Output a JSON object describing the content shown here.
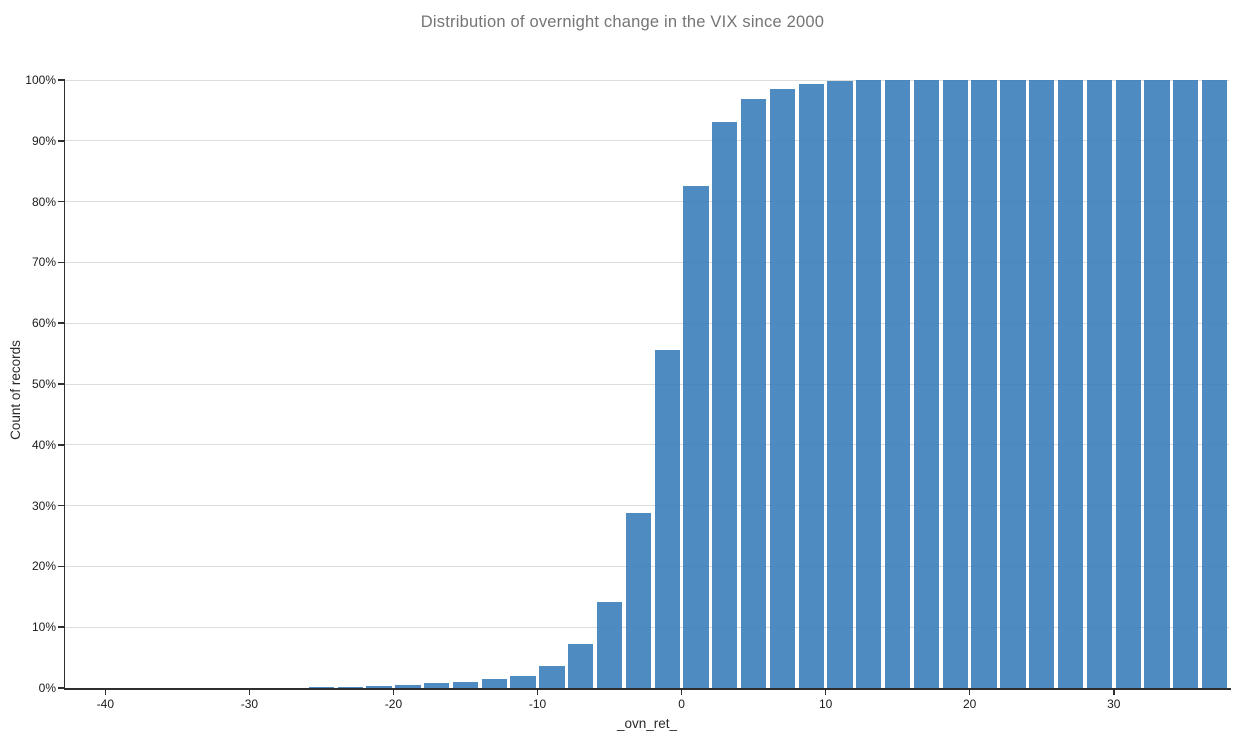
{
  "chart_data": {
    "type": "bar",
    "subtype": "cumulative-histogram",
    "title": "Distribution of overnight change in the VIX since 2000",
    "xlabel": "_ovn_ret_",
    "ylabel": "Count of records",
    "xlim": [
      -42.8,
      38
    ],
    "ylim_percent": [
      0,
      100
    ],
    "bin_width": 2,
    "grid": "horizontal-only",
    "legend": "none",
    "x_ticks": [
      -40,
      -30,
      -20,
      -10,
      0,
      10,
      20,
      30
    ],
    "x_tick_labels": [
      "-40",
      "-30",
      "-20",
      "-10",
      "0",
      "10",
      "20",
      "30"
    ],
    "y_ticks_percent": [
      0,
      10,
      20,
      30,
      40,
      50,
      60,
      70,
      80,
      90,
      100
    ],
    "y_tick_labels": [
      "0%",
      "10%",
      "20%",
      "30%",
      "40%",
      "50%",
      "60%",
      "70%",
      "80%",
      "90%",
      "100%"
    ],
    "bars": [
      {
        "x0": -42,
        "pct": 0.02
      },
      {
        "x0": -40,
        "pct": 0.03
      },
      {
        "x0": -38,
        "pct": 0.03
      },
      {
        "x0": -36,
        "pct": 0.04
      },
      {
        "x0": -34,
        "pct": 0.05
      },
      {
        "x0": -32,
        "pct": 0.06
      },
      {
        "x0": -30,
        "pct": 0.07
      },
      {
        "x0": -28,
        "pct": 0.08
      },
      {
        "x0": -26,
        "pct": 0.1
      },
      {
        "x0": -24,
        "pct": 0.15
      },
      {
        "x0": -22,
        "pct": 0.3
      },
      {
        "x0": -20,
        "pct": 0.5
      },
      {
        "x0": -18,
        "pct": 0.8
      },
      {
        "x0": -16,
        "pct": 1.05
      },
      {
        "x0": -14,
        "pct": 1.45
      },
      {
        "x0": -12,
        "pct": 2.0
      },
      {
        "x0": -10,
        "pct": 3.7
      },
      {
        "x0": -8,
        "pct": 7.2
      },
      {
        "x0": -6,
        "pct": 14.2
      },
      {
        "x0": -4,
        "pct": 28.8
      },
      {
        "x0": -2,
        "pct": 55.6
      },
      {
        "x0": 0,
        "pct": 82.6
      },
      {
        "x0": 2,
        "pct": 93.1
      },
      {
        "x0": 4,
        "pct": 96.9
      },
      {
        "x0": 6,
        "pct": 98.6
      },
      {
        "x0": 8,
        "pct": 99.3
      },
      {
        "x0": 10,
        "pct": 99.8
      },
      {
        "x0": 12,
        "pct": 100
      },
      {
        "x0": 14,
        "pct": 100
      },
      {
        "x0": 16,
        "pct": 100
      },
      {
        "x0": 18,
        "pct": 100
      },
      {
        "x0": 20,
        "pct": 100
      },
      {
        "x0": 22,
        "pct": 100
      },
      {
        "x0": 24,
        "pct": 100
      },
      {
        "x0": 26,
        "pct": 100
      },
      {
        "x0": 28,
        "pct": 100
      },
      {
        "x0": 30,
        "pct": 100
      },
      {
        "x0": 32,
        "pct": 100
      },
      {
        "x0": 34,
        "pct": 100
      },
      {
        "x0": 36,
        "pct": 100
      }
    ],
    "colors": {
      "bar_fill": "#327ab7",
      "bar_opacity": 0.87,
      "gridline": "#dddddd",
      "axis_line": "#2f2f2f",
      "tick_label": "#1b1b1b",
      "axis_title": "#2a2a2a",
      "chart_title": "#757575",
      "background": "#ffffff"
    }
  }
}
